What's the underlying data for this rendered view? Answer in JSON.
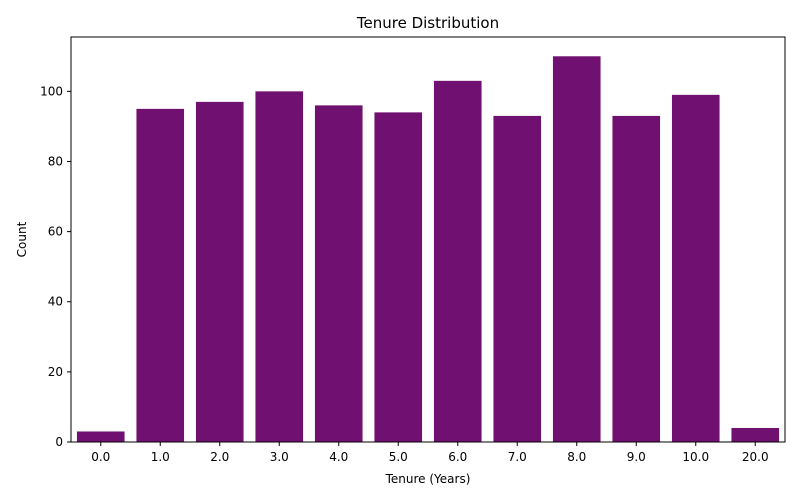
{
  "chart_data": {
    "type": "bar",
    "title": "Tenure Distribution",
    "xlabel": "Tenure (Years)",
    "ylabel": "Count",
    "categories": [
      "0.0",
      "1.0",
      "2.0",
      "3.0",
      "4.0",
      "5.0",
      "6.0",
      "7.0",
      "8.0",
      "9.0",
      "10.0",
      "20.0"
    ],
    "values": [
      3,
      95,
      97,
      100,
      96,
      94,
      103,
      93,
      110,
      93,
      99,
      4
    ],
    "ylim": [
      0,
      115.5
    ],
    "yticks": [
      0,
      20,
      40,
      60,
      80,
      100
    ],
    "bar_color": "#701070",
    "grid": false,
    "legend": "none"
  }
}
